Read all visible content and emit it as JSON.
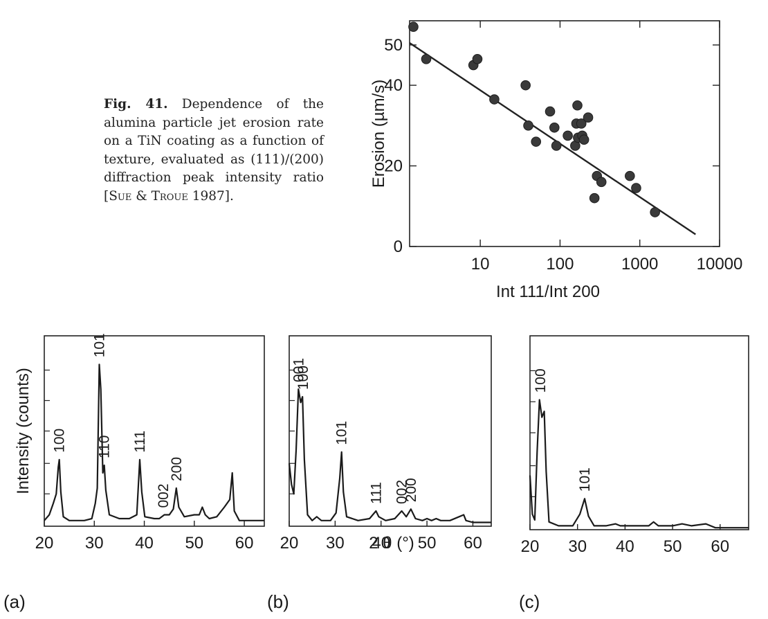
{
  "caption": {
    "fig_label": "Fig. 41.",
    "text_before_ref": "Dependence of the alumina particle jet erosion rate on a TiN coating as a function of texture, evaluated as (111)/(200) diffraction peak intensity ratio [",
    "ref_author_1": "Sue",
    "ref_amp": " & ",
    "ref_author_2": "Troue",
    "ref_year": " 1987]."
  },
  "chart_data": [
    {
      "id": "erosion",
      "type": "scatter",
      "xlabel": "Int 111/Int 200",
      "ylabel": "Erosion (µm/s)",
      "x_scale": "log",
      "xlim": [
        1.3,
        10000
      ],
      "ylim": [
        0,
        56
      ],
      "x_ticks": [
        10,
        100,
        1000,
        10000
      ],
      "x_tick_labels": [
        "10",
        "100",
        "1000",
        "10000"
      ],
      "y_ticks": [
        0,
        20,
        40,
        50
      ],
      "y_tick_labels": [
        "0",
        "20",
        "40",
        "50"
      ],
      "grid": false,
      "legend": "none",
      "points": [
        {
          "x": 1.45,
          "y": 54.5
        },
        {
          "x": 2.1,
          "y": 46.5
        },
        {
          "x": 8.2,
          "y": 45.0
        },
        {
          "x": 9.2,
          "y": 46.5
        },
        {
          "x": 15,
          "y": 36.5
        },
        {
          "x": 37,
          "y": 40.0
        },
        {
          "x": 40,
          "y": 30.0
        },
        {
          "x": 50,
          "y": 26.0
        },
        {
          "x": 75,
          "y": 33.5
        },
        {
          "x": 85,
          "y": 29.5
        },
        {
          "x": 90,
          "y": 25.0
        },
        {
          "x": 125,
          "y": 27.5
        },
        {
          "x": 155,
          "y": 25.0
        },
        {
          "x": 160,
          "y": 30.5
        },
        {
          "x": 165,
          "y": 35.0
        },
        {
          "x": 168,
          "y": 27.0
        },
        {
          "x": 185,
          "y": 30.5
        },
        {
          "x": 190,
          "y": 27.5
        },
        {
          "x": 200,
          "y": 26.5
        },
        {
          "x": 225,
          "y": 32.0
        },
        {
          "x": 270,
          "y": 12.0
        },
        {
          "x": 290,
          "y": 17.5
        },
        {
          "x": 330,
          "y": 16.0
        },
        {
          "x": 750,
          "y": 17.5
        },
        {
          "x": 900,
          "y": 14.5
        },
        {
          "x": 1550,
          "y": 8.5
        }
      ],
      "fit_line": [
        {
          "x": 1.3,
          "y": 50.5
        },
        {
          "x": 5000,
          "y": 3.0
        }
      ]
    },
    {
      "id": "xrd-a",
      "type": "line",
      "panel_label": "(a)",
      "ylabel": "Intensity (counts)",
      "xlim": [
        20,
        64
      ],
      "ylim": [
        0,
        100
      ],
      "x_ticks": [
        20,
        30,
        40,
        50,
        60
      ],
      "x_tick_labels": [
        "20",
        "30",
        "40",
        "50",
        "60"
      ],
      "y_tick_values": [
        17,
        33,
        50,
        66,
        82
      ],
      "points": [
        [
          20,
          3
        ],
        [
          21,
          6
        ],
        [
          21.8,
          12
        ],
        [
          22.4,
          17
        ],
        [
          22.8,
          31
        ],
        [
          23,
          35
        ],
        [
          23.3,
          18
        ],
        [
          23.8,
          5
        ],
        [
          25,
          3
        ],
        [
          28,
          3
        ],
        [
          29.5,
          4
        ],
        [
          30.2,
          12
        ],
        [
          30.6,
          20
        ],
        [
          31,
          85
        ],
        [
          31.3,
          72
        ],
        [
          31.7,
          28
        ],
        [
          32,
          32
        ],
        [
          32.3,
          19
        ],
        [
          33,
          6
        ],
        [
          35,
          4
        ],
        [
          37,
          4
        ],
        [
          38.5,
          6
        ],
        [
          39.1,
          35
        ],
        [
          39.5,
          18
        ],
        [
          40.1,
          5
        ],
        [
          42,
          4
        ],
        [
          43,
          4
        ],
        [
          44,
          6
        ],
        [
          45,
          6
        ],
        [
          45.8,
          9
        ],
        [
          46.4,
          20
        ],
        [
          46.9,
          10
        ],
        [
          48,
          5
        ],
        [
          50,
          6
        ],
        [
          51,
          6
        ],
        [
          51.6,
          10
        ],
        [
          52.2,
          6
        ],
        [
          53,
          4
        ],
        [
          54.5,
          5
        ],
        [
          56,
          10
        ],
        [
          57.1,
          14
        ],
        [
          57.6,
          28
        ],
        [
          58,
          8
        ],
        [
          59,
          3
        ],
        [
          62,
          3
        ],
        [
          64,
          3
        ]
      ],
      "peaks": [
        {
          "label": "100",
          "x": 23.0,
          "y": 35
        },
        {
          "label": "101",
          "x": 31.0,
          "y": 85
        },
        {
          "label": "110",
          "x": 32.0,
          "y": 32
        },
        {
          "label": "111",
          "x": 39.1,
          "y": 35
        },
        {
          "label": "002",
          "x": 43.8,
          "y": 6
        },
        {
          "label": "200",
          "x": 46.4,
          "y": 20
        }
      ]
    },
    {
      "id": "xrd-b",
      "type": "line",
      "panel_label": "(b)",
      "xlim": [
        20,
        64
      ],
      "ylim": [
        0,
        100
      ],
      "x_ticks": [
        20,
        30,
        40,
        50,
        60
      ],
      "x_tick_labels": [
        "20",
        "30",
        "40",
        "50",
        "60"
      ],
      "y_tick_values": [
        17,
        33,
        50,
        66,
        82
      ],
      "points": [
        [
          20,
          33
        ],
        [
          20.5,
          22
        ],
        [
          21,
          17
        ],
        [
          21.5,
          40
        ],
        [
          22,
          72
        ],
        [
          22.5,
          65
        ],
        [
          22.9,
          68
        ],
        [
          23.3,
          35
        ],
        [
          24,
          6
        ],
        [
          25,
          3
        ],
        [
          26,
          5
        ],
        [
          27,
          3
        ],
        [
          29,
          3
        ],
        [
          30.2,
          7
        ],
        [
          31,
          25
        ],
        [
          31.4,
          39
        ],
        [
          31.8,
          18
        ],
        [
          32.5,
          5
        ],
        [
          35,
          3
        ],
        [
          37.5,
          4
        ],
        [
          38.9,
          8
        ],
        [
          39.5,
          5
        ],
        [
          41,
          3
        ],
        [
          43,
          4
        ],
        [
          44.5,
          8
        ],
        [
          45.5,
          5
        ],
        [
          46.5,
          9
        ],
        [
          47.5,
          4
        ],
        [
          49,
          3
        ],
        [
          50,
          4
        ],
        [
          51,
          3
        ],
        [
          52,
          4
        ],
        [
          53,
          3
        ],
        [
          55,
          3
        ],
        [
          57,
          5
        ],
        [
          58,
          6
        ],
        [
          58.5,
          3
        ],
        [
          60,
          2
        ],
        [
          64,
          2
        ]
      ],
      "peaks": [
        {
          "label": "001",
          "x": 22.0,
          "y": 72
        },
        {
          "label": "100",
          "x": 23.0,
          "y": 68
        },
        {
          "label": "101",
          "x": 31.4,
          "y": 39
        },
        {
          "label": "111",
          "x": 38.9,
          "y": 8
        },
        {
          "label": "002",
          "x": 44.5,
          "y": 8
        },
        {
          "label": "200",
          "x": 46.5,
          "y": 9
        }
      ]
    },
    {
      "id": "xrd-c",
      "type": "line",
      "panel_label": "(c)",
      "xlim": [
        20,
        66
      ],
      "ylim": [
        0,
        100
      ],
      "x_ticks": [
        20,
        30,
        40,
        50,
        60
      ],
      "x_tick_labels": [
        "20",
        "30",
        "40",
        "50",
        "60"
      ],
      "y_tick_values": [
        17,
        33,
        50,
        66,
        82
      ],
      "points": [
        [
          20,
          28
        ],
        [
          20.5,
          8
        ],
        [
          21,
          5
        ],
        [
          21.5,
          40
        ],
        [
          22,
          67
        ],
        [
          22.5,
          58
        ],
        [
          23,
          61
        ],
        [
          23.4,
          30
        ],
        [
          24,
          4
        ],
        [
          26,
          2
        ],
        [
          29,
          2
        ],
        [
          30.5,
          8
        ],
        [
          31.5,
          16
        ],
        [
          32.3,
          7
        ],
        [
          33.5,
          2
        ],
        [
          36,
          2
        ],
        [
          38,
          3
        ],
        [
          39,
          2
        ],
        [
          42,
          2
        ],
        [
          45,
          2
        ],
        [
          46,
          4
        ],
        [
          47,
          2
        ],
        [
          50,
          2
        ],
        [
          52,
          3
        ],
        [
          54,
          2
        ],
        [
          57,
          3
        ],
        [
          59,
          1
        ],
        [
          62,
          1
        ],
        [
          66,
          1
        ]
      ],
      "peaks": [
        {
          "label": "100",
          "x": 22.2,
          "y": 67
        },
        {
          "label": "101",
          "x": 31.5,
          "y": 16
        }
      ]
    }
  ],
  "shared_xlabel": "2 θ (°)"
}
